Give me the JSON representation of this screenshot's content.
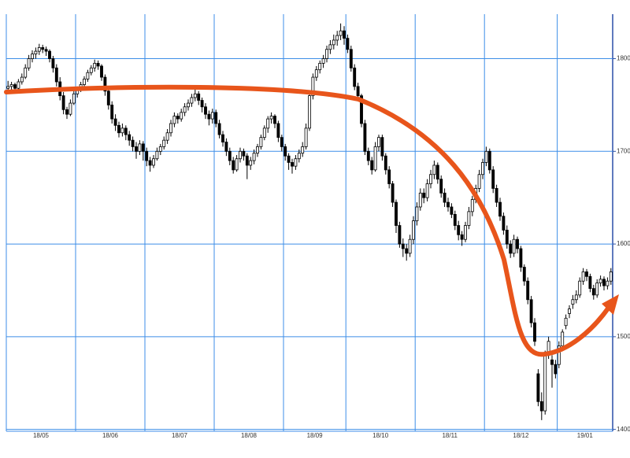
{
  "chart_data": {
    "type": "candlestick",
    "categories": [
      "18/05",
      "18/06",
      "18/07",
      "18/08",
      "18/09",
      "18/10",
      "18/11",
      "18/12",
      "19/01"
    ],
    "ohlc": [
      [
        [
          1768,
          1776,
          1765,
          1770
        ],
        [
          1770,
          1775,
          1766,
          1772
        ],
        [
          1772,
          1774,
          1764,
          1768
        ],
        [
          1768,
          1778,
          1766,
          1775
        ],
        [
          1775,
          1784,
          1772,
          1780
        ],
        [
          1780,
          1794,
          1778,
          1790
        ],
        [
          1790,
          1804,
          1787,
          1800
        ],
        [
          1800,
          1809,
          1796,
          1805
        ],
        [
          1805,
          1812,
          1800,
          1808
        ],
        [
          1808,
          1816,
          1804,
          1812
        ],
        [
          1812,
          1815,
          1806,
          1810
        ],
        [
          1810,
          1813,
          1803,
          1808
        ],
        [
          1808,
          1810,
          1796,
          1800
        ],
        [
          1800,
          1803,
          1785,
          1790
        ],
        [
          1790,
          1794,
          1770,
          1775
        ],
        [
          1775,
          1780,
          1755,
          1760
        ],
        [
          1760,
          1764,
          1740,
          1745
        ],
        [
          1745,
          1748,
          1735,
          1740
        ],
        [
          1740,
          1756,
          1738,
          1752
        ],
        [
          1752,
          1766,
          1750,
          1762
        ]
      ],
      [
        [
          1762,
          1770,
          1758,
          1768
        ],
        [
          1768,
          1775,
          1764,
          1772
        ],
        [
          1772,
          1781,
          1769,
          1778
        ],
        [
          1778,
          1788,
          1775,
          1785
        ],
        [
          1785,
          1793,
          1782,
          1790
        ],
        [
          1790,
          1799,
          1786,
          1795
        ],
        [
          1795,
          1798,
          1788,
          1792
        ],
        [
          1792,
          1794,
          1776,
          1780
        ],
        [
          1780,
          1783,
          1760,
          1765
        ],
        [
          1765,
          1768,
          1745,
          1750
        ],
        [
          1750,
          1754,
          1730,
          1735
        ],
        [
          1735,
          1740,
          1722,
          1728
        ],
        [
          1728,
          1732,
          1715,
          1720
        ],
        [
          1720,
          1730,
          1716,
          1725
        ],
        [
          1725,
          1728,
          1712,
          1718
        ],
        [
          1718,
          1722,
          1706,
          1712
        ],
        [
          1712,
          1716,
          1700,
          1705
        ],
        [
          1705,
          1710,
          1692,
          1700
        ],
        [
          1700,
          1712,
          1696,
          1708
        ],
        [
          1708,
          1711,
          1690,
          1700
        ]
      ],
      [
        [
          1700,
          1704,
          1684,
          1690
        ],
        [
          1690,
          1694,
          1678,
          1685
        ],
        [
          1685,
          1696,
          1682,
          1692
        ],
        [
          1692,
          1704,
          1690,
          1700
        ],
        [
          1700,
          1708,
          1696,
          1705
        ],
        [
          1705,
          1716,
          1702,
          1712
        ],
        [
          1712,
          1724,
          1708,
          1720
        ],
        [
          1720,
          1734,
          1716,
          1730
        ],
        [
          1730,
          1742,
          1726,
          1738
        ],
        [
          1738,
          1741,
          1730,
          1735
        ],
        [
          1735,
          1746,
          1732,
          1742
        ],
        [
          1742,
          1752,
          1738,
          1748
        ],
        [
          1748,
          1756,
          1744,
          1752
        ],
        [
          1752,
          1762,
          1748,
          1758
        ],
        [
          1758,
          1768,
          1754,
          1762
        ],
        [
          1762,
          1765,
          1750,
          1755
        ],
        [
          1755,
          1758,
          1742,
          1748
        ],
        [
          1748,
          1752,
          1735,
          1740
        ],
        [
          1740,
          1744,
          1728,
          1735
        ],
        [
          1735,
          1746,
          1730,
          1742
        ]
      ],
      [
        [
          1742,
          1745,
          1726,
          1730
        ],
        [
          1730,
          1734,
          1714,
          1718
        ],
        [
          1718,
          1722,
          1705,
          1710
        ],
        [
          1710,
          1714,
          1695,
          1700
        ],
        [
          1700,
          1704,
          1685,
          1690
        ],
        [
          1690,
          1694,
          1676,
          1680
        ],
        [
          1680,
          1696,
          1678,
          1692
        ],
        [
          1692,
          1704,
          1688,
          1700
        ],
        [
          1700,
          1703,
          1690,
          1695
        ],
        [
          1695,
          1698,
          1670,
          1685
        ],
        [
          1685,
          1694,
          1680,
          1690
        ],
        [
          1690,
          1702,
          1686,
          1698
        ],
        [
          1698,
          1708,
          1694,
          1705
        ],
        [
          1705,
          1718,
          1702,
          1715
        ],
        [
          1715,
          1728,
          1712,
          1725
        ],
        [
          1725,
          1738,
          1720,
          1735
        ],
        [
          1735,
          1742,
          1730,
          1738
        ],
        [
          1738,
          1740,
          1725,
          1730
        ],
        [
          1730,
          1733,
          1710,
          1715
        ],
        [
          1715,
          1718,
          1700,
          1705
        ]
      ],
      [
        [
          1705,
          1708,
          1690,
          1695
        ],
        [
          1695,
          1698,
          1680,
          1688
        ],
        [
          1688,
          1692,
          1676,
          1684
        ],
        [
          1684,
          1696,
          1680,
          1692
        ],
        [
          1692,
          1702,
          1688,
          1698
        ],
        [
          1698,
          1710,
          1694,
          1705
        ],
        [
          1705,
          1730,
          1702,
          1725
        ],
        [
          1725,
          1764,
          1722,
          1760
        ],
        [
          1760,
          1784,
          1756,
          1780
        ],
        [
          1780,
          1792,
          1776,
          1788
        ],
        [
          1788,
          1798,
          1784,
          1795
        ],
        [
          1795,
          1804,
          1790,
          1800
        ],
        [
          1800,
          1814,
          1796,
          1810
        ],
        [
          1810,
          1820,
          1805,
          1815
        ],
        [
          1815,
          1826,
          1810,
          1820
        ],
        [
          1820,
          1830,
          1814,
          1825
        ],
        [
          1825,
          1838,
          1820,
          1830
        ],
        [
          1830,
          1835,
          1815,
          1822
        ]
      ],
      [
        [
          1822,
          1826,
          1806,
          1810
        ],
        [
          1810,
          1814,
          1786,
          1790
        ],
        [
          1790,
          1794,
          1766,
          1770
        ],
        [
          1770,
          1774,
          1755,
          1760
        ],
        [
          1760,
          1762,
          1726,
          1730
        ],
        [
          1730,
          1734,
          1696,
          1700
        ],
        [
          1700,
          1704,
          1685,
          1690
        ],
        [
          1690,
          1694,
          1675,
          1680
        ],
        [
          1680,
          1710,
          1678,
          1705
        ],
        [
          1705,
          1718,
          1700,
          1715
        ],
        [
          1715,
          1718,
          1690,
          1695
        ],
        [
          1695,
          1698,
          1675,
          1680
        ],
        [
          1680,
          1684,
          1660,
          1665
        ],
        [
          1665,
          1668,
          1640,
          1645
        ],
        [
          1645,
          1648,
          1612,
          1620
        ],
        [
          1620,
          1624,
          1596,
          1600
        ],
        [
          1600,
          1606,
          1586,
          1595
        ],
        [
          1595,
          1600,
          1582,
          1590
        ],
        [
          1590,
          1610,
          1586,
          1605
        ],
        [
          1605,
          1630,
          1600,
          1625
        ]
      ],
      [
        [
          1625,
          1645,
          1620,
          1640
        ],
        [
          1640,
          1660,
          1636,
          1655
        ],
        [
          1655,
          1660,
          1644,
          1650
        ],
        [
          1650,
          1670,
          1646,
          1665
        ],
        [
          1665,
          1680,
          1660,
          1675
        ],
        [
          1675,
          1690,
          1670,
          1685
        ],
        [
          1685,
          1688,
          1665,
          1670
        ],
        [
          1670,
          1674,
          1650,
          1655
        ],
        [
          1655,
          1660,
          1640,
          1645
        ],
        [
          1645,
          1650,
          1635,
          1640
        ],
        [
          1640,
          1644,
          1628,
          1632
        ],
        [
          1632,
          1636,
          1615,
          1620
        ],
        [
          1620,
          1625,
          1604,
          1610
        ],
        [
          1610,
          1614,
          1598,
          1605
        ],
        [
          1605,
          1624,
          1602,
          1620
        ],
        [
          1620,
          1640,
          1616,
          1635
        ],
        [
          1635,
          1652,
          1630,
          1648
        ],
        [
          1648,
          1664,
          1644,
          1660
        ],
        [
          1660,
          1680,
          1656,
          1675
        ],
        [
          1675,
          1692,
          1670,
          1688
        ]
      ],
      [
        [
          1688,
          1705,
          1684,
          1700
        ],
        [
          1700,
          1703,
          1676,
          1680
        ],
        [
          1680,
          1684,
          1655,
          1660
        ],
        [
          1660,
          1664,
          1640,
          1645
        ],
        [
          1645,
          1650,
          1625,
          1630
        ],
        [
          1630,
          1634,
          1610,
          1615
        ],
        [
          1615,
          1620,
          1595,
          1600
        ],
        [
          1600,
          1604,
          1585,
          1590
        ],
        [
          1590,
          1610,
          1586,
          1605
        ],
        [
          1605,
          1608,
          1590,
          1595
        ],
        [
          1595,
          1598,
          1570,
          1575
        ],
        [
          1575,
          1578,
          1555,
          1560
        ],
        [
          1560,
          1564,
          1535,
          1540
        ],
        [
          1540,
          1544,
          1510,
          1515
        ],
        [
          1515,
          1520,
          1490,
          1495
        ],
        [
          1460,
          1465,
          1425,
          1430
        ],
        [
          1430,
          1440,
          1410,
          1420
        ],
        [
          1420,
          1485,
          1416,
          1480
        ],
        [
          1480,
          1500,
          1476,
          1495
        ],
        [
          1475,
          1480,
          1445,
          1470
        ],
        [
          1470,
          1475,
          1455,
          1460
        ]
      ],
      [
        [
          1470,
          1495,
          1466,
          1490
        ],
        [
          1490,
          1508,
          1486,
          1505
        ],
        [
          1512,
          1524,
          1508,
          1520
        ],
        [
          1525,
          1534,
          1520,
          1530
        ],
        [
          1535,
          1545,
          1530,
          1540
        ],
        [
          1540,
          1550,
          1536,
          1545
        ],
        [
          1545,
          1564,
          1542,
          1560
        ],
        [
          1560,
          1574,
          1556,
          1570
        ],
        [
          1570,
          1573,
          1560,
          1565
        ],
        [
          1565,
          1568,
          1548,
          1552
        ],
        [
          1552,
          1556,
          1540,
          1545
        ],
        [
          1545,
          1562,
          1542,
          1558
        ],
        [
          1558,
          1566,
          1554,
          1562
        ],
        [
          1562,
          1565,
          1550,
          1555
        ],
        [
          1555,
          1564,
          1551,
          1560
        ],
        [
          1560,
          1574,
          1556,
          1570
        ]
      ]
    ],
    "ylim": [
      1398,
      1848
    ],
    "yticks": [
      1400,
      1500,
      1600,
      1700,
      1800
    ],
    "grid": true,
    "up_color": "#ffffff",
    "down_color": "#000000",
    "grid_color": "#3d8ee8"
  }
}
